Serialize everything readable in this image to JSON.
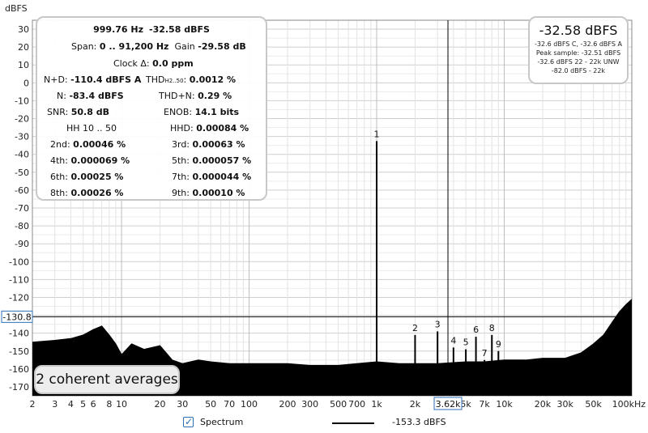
{
  "chart_data": {
    "type": "line",
    "ylabel": "dBFS",
    "xlabel": "",
    "xscale": "log",
    "xlim": [
      2,
      100000
    ],
    "ylim": [
      -175,
      35
    ],
    "grid": true,
    "y_ticks": [
      30,
      20,
      10,
      0,
      -10,
      -20,
      -30,
      -40,
      -50,
      -60,
      -70,
      -80,
      -90,
      -100,
      -110,
      -120,
      -130,
      -140,
      -150,
      -160,
      -170
    ],
    "x_ticks": [
      {
        "v": 2,
        "l": "2"
      },
      {
        "v": 3,
        "l": "3"
      },
      {
        "v": 4,
        "l": "4"
      },
      {
        "v": 5,
        "l": "5"
      },
      {
        "v": 6,
        "l": "6"
      },
      {
        "v": 8,
        "l": "8"
      },
      {
        "v": 10,
        "l": "10"
      },
      {
        "v": 20,
        "l": "20"
      },
      {
        "v": 30,
        "l": "30"
      },
      {
        "v": 50,
        "l": "50"
      },
      {
        "v": 70,
        "l": "70"
      },
      {
        "v": 100,
        "l": "100"
      },
      {
        "v": 200,
        "l": "200"
      },
      {
        "v": 300,
        "l": "300"
      },
      {
        "v": 500,
        "l": "500"
      },
      {
        "v": 700,
        "l": "700"
      },
      {
        "v": 1000,
        "l": "1k"
      },
      {
        "v": 2000,
        "l": "2k"
      },
      {
        "v": 5000,
        "l": "5k"
      },
      {
        "v": 7000,
        "l": "7k"
      },
      {
        "v": 10000,
        "l": "10k"
      },
      {
        "v": 20000,
        "l": "20k"
      },
      {
        "v": 30000,
        "l": "30k"
      },
      {
        "v": 50000,
        "l": "50k"
      },
      {
        "v": 100000,
        "l": "100kHz"
      }
    ],
    "cursor_x": {
      "value": 3620,
      "label": "3.62k"
    },
    "cursor_y": {
      "value": -130.8,
      "label": "-130.8"
    },
    "series": [
      {
        "name": "Spectrum",
        "x": [
          2,
          3,
          4,
          5,
          6,
          7,
          8,
          9,
          10,
          12,
          15,
          20,
          25,
          30,
          40,
          50,
          70,
          100,
          150,
          200,
          300,
          500,
          700,
          1000,
          1500,
          2000,
          3000,
          5000,
          7000,
          10000,
          15000,
          20000,
          30000,
          40000,
          50000,
          60000,
          70000,
          80000,
          90000,
          100000
        ],
        "y": [
          -145,
          -144,
          -143,
          -141,
          -138,
          -136,
          -141,
          -146,
          -152,
          -146,
          -149,
          -147,
          -155,
          -157,
          -155,
          -156,
          -157,
          -157,
          -157,
          -157,
          -158,
          -158,
          -157,
          -156,
          -157,
          -157,
          -157,
          -156,
          -156,
          -155,
          -155,
          -154,
          -154,
          -151,
          -146,
          -141,
          -134,
          -128,
          -124,
          -121
        ]
      }
    ],
    "peaks": [
      {
        "label": "1",
        "x": 1000,
        "y": -32.58
      },
      {
        "label": "2",
        "x": 2000,
        "y": -141
      },
      {
        "label": "3",
        "x": 3000,
        "y": -139
      },
      {
        "label": "4",
        "x": 4000,
        "y": -148
      },
      {
        "label": "5",
        "x": 5000,
        "y": -149
      },
      {
        "label": "6",
        "x": 6000,
        "y": -142
      },
      {
        "label": "7",
        "x": 7000,
        "y": -155
      },
      {
        "label": "8",
        "x": 8000,
        "y": -141
      },
      {
        "label": "9",
        "x": 9000,
        "y": -150
      }
    ]
  },
  "stats": {
    "freq": "999.76 Hz",
    "level": "-32.58 dBFS",
    "span_label": "Span:",
    "span_value": "0 .. 91,200 Hz",
    "gain_label": "Gain",
    "gain_value": "-29.58 dB",
    "clock_label": "Clock Δ:",
    "clock_value": "0.0 ppm",
    "nd_label": "N+D:",
    "nd_value": "-110.4 dBFS A",
    "thd_label": "THD",
    "thd_sub": "H2..50",
    "thd_sep": ":",
    "thd_value": "0.0012 %",
    "n_label": "N:",
    "n_value": "-83.4 dBFS",
    "thdn_label": "THD+N:",
    "thdn_value": "0.29 %",
    "snr_label": "SNR:",
    "snr_value": "50.8 dB",
    "enob_label": "ENOB:",
    "enob_value": "14.1 bits",
    "hh_label": "HH 10 .. 50",
    "hhd_label": "HHD:",
    "hhd_value": "0.00084 %",
    "h2_label": "2nd:",
    "h2_value": "0.00046 %",
    "h3_label": "3rd:",
    "h3_value": "0.00063 %",
    "h4_label": "4th:",
    "h4_value": "0.000069 %",
    "h5_label": "5th:",
    "h5_value": "0.000057 %",
    "h6_label": "6th:",
    "h6_value": "0.00025 %",
    "h7_label": "7th:",
    "h7_value": "0.000044 %",
    "h8_label": "8th:",
    "h8_value": "0.00026 %",
    "h9_label": "9th:",
    "h9_value": "0.00010 %"
  },
  "peak_box": {
    "main": "-32.58 dBFS",
    "line1": "-32.6 dBFS C, -32.6 dBFS A",
    "line2": "Peak sample: -32.51 dBFS",
    "line3": "-32.6 dBFS 22 - 22k UNW",
    "line4": "-82.0 dBFS - 22k"
  },
  "averages_label": "2 coherent averages",
  "legend": {
    "checked": true,
    "label": "Spectrum",
    "value": "-153.3 dBFS",
    "color": "#000000"
  }
}
